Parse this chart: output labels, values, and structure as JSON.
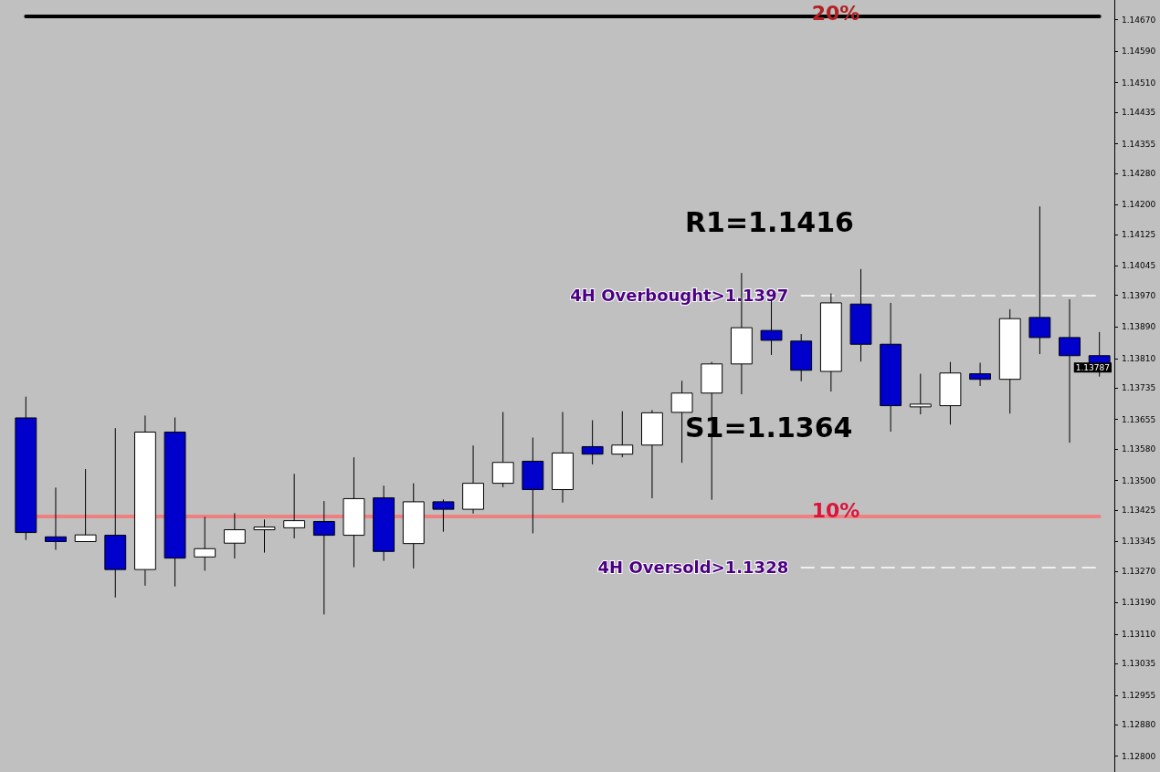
{
  "chart_data": {
    "type": "candlestick",
    "categories": [
      null,
      null,
      null,
      null,
      null,
      null,
      null,
      null,
      null,
      null,
      null,
      null,
      null,
      null,
      null,
      null,
      null,
      null,
      null,
      null,
      null,
      null,
      null,
      null,
      null,
      null,
      null,
      null,
      null,
      null,
      null,
      null,
      null,
      null,
      null,
      null,
      null
    ],
    "ohlc": [
      [
        1.13659,
        1.13713,
        1.13349,
        1.13368
      ],
      [
        1.13357,
        1.13482,
        1.13324,
        1.13345
      ],
      [
        1.13345,
        1.13529,
        1.13345,
        1.13362
      ],
      [
        1.13361,
        1.13633,
        1.13203,
        1.13274
      ],
      [
        1.13274,
        1.13665,
        1.13233,
        1.13623
      ],
      [
        1.13623,
        1.1366,
        1.13231,
        1.13303
      ],
      [
        1.13306,
        1.13408,
        1.13271,
        1.13327
      ],
      [
        1.13341,
        1.13417,
        1.13302,
        1.13375
      ],
      [
        1.13375,
        1.13401,
        1.13317,
        1.13382
      ],
      [
        1.1338,
        1.13517,
        1.13353,
        1.13398
      ],
      [
        1.13396,
        1.13448,
        1.1316,
        1.13361
      ],
      [
        1.13361,
        1.13559,
        1.1328,
        1.13454
      ],
      [
        1.13456,
        1.13487,
        1.13296,
        1.1332
      ],
      [
        1.1334,
        1.13493,
        1.13277,
        1.13446
      ],
      [
        1.13446,
        1.13452,
        1.1337,
        1.13427
      ],
      [
        1.13427,
        1.13589,
        1.13416,
        1.13493
      ],
      [
        1.13493,
        1.13674,
        1.13483,
        1.13546
      ],
      [
        1.13549,
        1.13609,
        1.13366,
        1.13477
      ],
      [
        1.13477,
        1.13674,
        1.13444,
        1.1357
      ],
      [
        1.13586,
        1.13653,
        1.13541,
        1.13567
      ],
      [
        1.13567,
        1.13676,
        1.13559,
        1.1359
      ],
      [
        1.1359,
        1.13679,
        1.13455,
        1.13672
      ],
      [
        1.13673,
        1.13753,
        1.13545,
        1.13722
      ],
      [
        1.13722,
        1.13801,
        1.13451,
        1.13796
      ],
      [
        1.13796,
        1.14027,
        1.13719,
        1.13888
      ],
      [
        1.13881,
        1.1396,
        1.13819,
        1.13856
      ],
      [
        1.13854,
        1.13872,
        1.13752,
        1.1378
      ],
      [
        1.13777,
        1.13975,
        1.13726,
        1.13951
      ],
      [
        1.13948,
        1.14037,
        1.13802,
        1.13846
      ],
      [
        1.13846,
        1.13951,
        1.13624,
        1.1369
      ],
      [
        1.13687,
        1.13771,
        1.13668,
        1.13694
      ],
      [
        1.1369,
        1.13801,
        1.13642,
        1.13773
      ],
      [
        1.13771,
        1.13799,
        1.1374,
        1.13757
      ],
      [
        1.13757,
        1.13935,
        1.1367,
        1.13911
      ],
      [
        1.13914,
        1.14196,
        1.13821,
        1.13863
      ],
      [
        1.13863,
        1.1396,
        1.13596,
        1.13817
      ],
      [
        1.13817,
        1.13877,
        1.13764,
        1.13787
      ]
    ],
    "colors": [
      "#0000cc",
      "#0000cc",
      "#ffffff",
      "#0000cc",
      "#ffffff",
      "#0000cc",
      "#ffffff",
      "#ffffff",
      "#ffffff",
      "#ffffff",
      "#0000cc",
      "#ffffff",
      "#0000cc",
      "#ffffff",
      "#0000cc",
      "#ffffff",
      "#ffffff",
      "#0000cc",
      "#ffffff",
      "#0000cc",
      "#ffffff",
      "#ffffff",
      "#ffffff",
      "#ffffff",
      "#ffffff",
      "#0000cc",
      "#0000cc",
      "#ffffff",
      "#0000cc",
      "#0000cc",
      "#ffffff",
      "#ffffff",
      "#0000cc",
      "#ffffff",
      "#0000cc",
      "#0000cc",
      "#0000cc"
    ],
    "ylim": [
      1.1276,
      1.1472
    ],
    "yticks": [
      {
        "value": 1.1467,
        "label": "1.14670"
      },
      {
        "value": 1.1459,
        "label": "1.14590"
      },
      {
        "value": 1.1451,
        "label": "1.14510"
      },
      {
        "value": 1.14435,
        "label": "1.14435"
      },
      {
        "value": 1.14355,
        "label": "1.14355"
      },
      {
        "value": 1.1428,
        "label": "1.14280"
      },
      {
        "value": 1.142,
        "label": "1.14200"
      },
      {
        "value": 1.14125,
        "label": "1.14125"
      },
      {
        "value": 1.14045,
        "label": "1.14045"
      },
      {
        "value": 1.1397,
        "label": "1.13970"
      },
      {
        "value": 1.1389,
        "label": "1.13890"
      },
      {
        "value": 1.1381,
        "label": "1.13810"
      },
      {
        "value": 1.13735,
        "label": "1.13735"
      },
      {
        "value": 1.13655,
        "label": "1.13655"
      },
      {
        "value": 1.1358,
        "label": "1.13580"
      },
      {
        "value": 1.135,
        "label": "1.13500"
      },
      {
        "value": 1.13425,
        "label": "1.13425"
      },
      {
        "value": 1.13345,
        "label": "1.13345"
      },
      {
        "value": 1.1327,
        "label": "1.13270"
      },
      {
        "value": 1.1319,
        "label": "1.13190"
      },
      {
        "value": 1.1311,
        "label": "1.13110"
      },
      {
        "value": 1.13035,
        "label": "1.13035"
      },
      {
        "value": 1.12955,
        "label": "1.12955"
      },
      {
        "value": 1.1288,
        "label": "1.12880"
      },
      {
        "value": 1.128,
        "label": "1.12800"
      }
    ],
    "tick_labels": "y",
    "grid": false,
    "ref_lines": [
      {
        "axis": "y",
        "value": 1.1468,
        "color": "#000000"
      },
      {
        "axis": "y",
        "value": 1.1341,
        "color": "#f08080"
      },
      {
        "axis": "y",
        "value": 1.1397,
        "label": "4H Overbought>1.1397",
        "color": "#ffffff",
        "line_style": "dashed"
      },
      {
        "axis": "y",
        "value": 1.1328,
        "label": "4H Oversold>1.1328",
        "color": "#ffffff",
        "line_style": "dashed"
      }
    ],
    "annotations": [
      "R1=1.1416",
      "S1=1.1364",
      "1.13787",
      "20%",
      "10%"
    ]
  }
}
